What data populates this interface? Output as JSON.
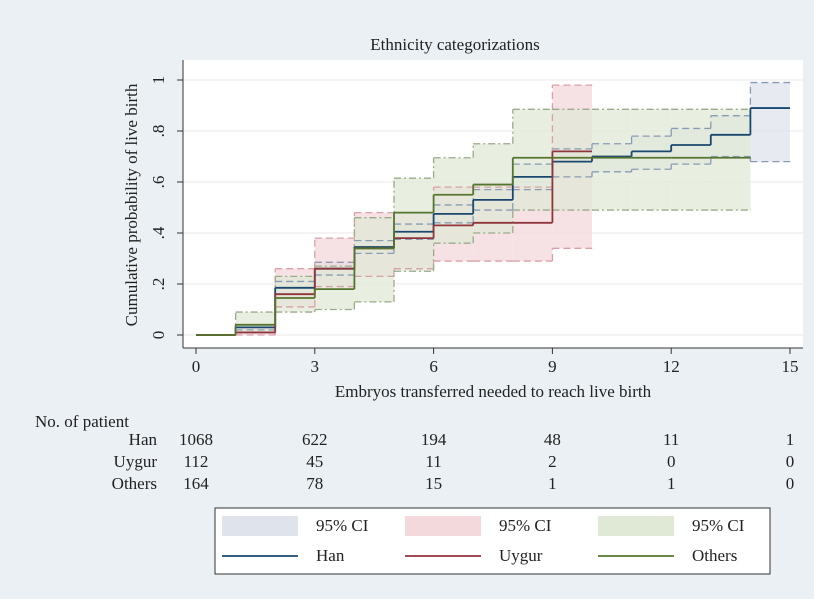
{
  "chart_data": {
    "type": "step",
    "title": "Ethnicity categorizations",
    "x_label": "Embryos transferred needed to reach live birth",
    "y_label": "Cumulative probability of live birth",
    "xlim": [
      0,
      15
    ],
    "xticks": [
      0,
      3,
      6,
      9,
      12,
      15
    ],
    "ylim": [
      0,
      1
    ],
    "yticks": [
      0,
      {
        "value": 0.2,
        "label": ".2"
      },
      {
        "value": 0.4,
        "label": ".4"
      },
      {
        "value": 0.6,
        "label": ".6"
      },
      {
        "value": 0.8,
        "label": ".8"
      },
      1
    ],
    "grid": true,
    "series": [
      {
        "name": "Han",
        "color": "#1a476f",
        "ci_name": "95% CI",
        "ci_color": "#dfe4ec",
        "ci_edge": "#8a9bb5",
        "x": [
          0,
          1,
          2,
          3,
          4,
          5,
          6,
          7,
          8,
          9,
          10,
          11,
          12,
          13,
          14,
          15
        ],
        "values": [
          0,
          0.03,
          0.185,
          0.26,
          0.345,
          0.405,
          0.475,
          0.53,
          0.62,
          0.68,
          0.7,
          0.72,
          0.745,
          0.785,
          0.89,
          0.89
        ],
        "ci_lower": [
          0,
          0.02,
          0.16,
          0.235,
          0.32,
          0.375,
          0.44,
          0.49,
          0.57,
          0.62,
          0.64,
          0.65,
          0.67,
          0.7,
          0.68,
          0.68
        ],
        "ci_upper": [
          0,
          0.04,
          0.21,
          0.285,
          0.37,
          0.435,
          0.51,
          0.57,
          0.67,
          0.73,
          0.75,
          0.78,
          0.81,
          0.86,
          0.99,
          0.99
        ]
      },
      {
        "name": "Uygur",
        "color": "#90353b",
        "ci_name": "95% CI",
        "ci_color": "#f3d8dc",
        "ci_edge": "#d9a0a8",
        "x": [
          0,
          1,
          2,
          3,
          4,
          5,
          6,
          7,
          8,
          9,
          10
        ],
        "values": [
          0,
          0.01,
          0.16,
          0.26,
          0.34,
          0.38,
          0.43,
          0.44,
          0.44,
          0.72,
          0.72
        ],
        "ci_lower": [
          0,
          0,
          0.11,
          0.19,
          0.23,
          0.26,
          0.29,
          0.29,
          0.29,
          0.34,
          0.34
        ],
        "ci_upper": [
          0,
          0.03,
          0.26,
          0.38,
          0.48,
          0.48,
          0.58,
          0.58,
          0.58,
          0.98,
          0.98
        ]
      },
      {
        "name": "Others",
        "color": "#55752f",
        "ci_name": "95% CI",
        "ci_color": "#e0e8d6",
        "ci_edge": "#9aab8a",
        "x": [
          0,
          1,
          2,
          3,
          4,
          5,
          6,
          7,
          8,
          9,
          10,
          11,
          12,
          13,
          14
        ],
        "values": [
          0,
          0.04,
          0.145,
          0.18,
          0.34,
          0.48,
          0.55,
          0.59,
          0.695,
          0.695,
          0.695,
          0.695,
          0.695,
          0.695,
          0.695
        ],
        "ci_lower": [
          0,
          0.01,
          0.09,
          0.1,
          0.13,
          0.25,
          0.36,
          0.4,
          0.49,
          0.49,
          0.49,
          0.49,
          0.49,
          0.49,
          0.49
        ],
        "ci_upper": [
          0,
          0.09,
          0.23,
          0.27,
          0.46,
          0.615,
          0.695,
          0.75,
          0.885,
          0.885,
          0.885,
          0.885,
          0.885,
          0.885,
          0.885
        ]
      }
    ],
    "risk_table": {
      "title": "No. of patient",
      "rows": [
        {
          "name": "Han",
          "counts": [
            1068,
            622,
            194,
            48,
            11,
            1
          ]
        },
        {
          "name": "Uygur",
          "counts": [
            112,
            45,
            11,
            2,
            0,
            0
          ]
        },
        {
          "name": "Others",
          "counts": [
            164,
            78,
            15,
            1,
            1,
            0
          ]
        }
      ]
    }
  }
}
